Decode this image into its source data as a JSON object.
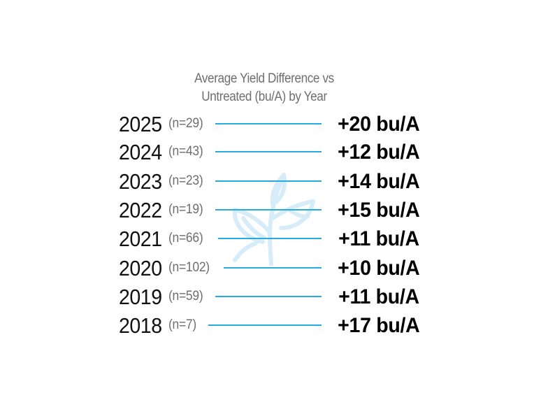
{
  "chart_data": {
    "type": "table",
    "title": "Average Yield Difference vs Untreated (bu/A) by Year",
    "title_lines": [
      "Average Yield Difference vs",
      "Untreated (bu/A) by Year"
    ],
    "rows": [
      {
        "year": "2025",
        "n": "(n=29)",
        "value": 20,
        "value_label": "+20 bu/A"
      },
      {
        "year": "2024",
        "n": "(n=43)",
        "value": 12,
        "value_label": "+12 bu/A"
      },
      {
        "year": "2023",
        "n": "(n=23)",
        "value": 14,
        "value_label": "+14 bu/A"
      },
      {
        "year": "2022",
        "n": "(n=19)",
        "value": 15,
        "value_label": "+15 bu/A"
      },
      {
        "year": "2021",
        "n": "(n=66)",
        "value": 11,
        "value_label": "+11 bu/A"
      },
      {
        "year": "2020",
        "n": "(n=102)",
        "value": 10,
        "value_label": "+10 bu/A"
      },
      {
        "year": "2019",
        "n": "(n=59)",
        "value": 11,
        "value_label": "+11 bu/A"
      },
      {
        "year": "2018",
        "n": "(n=7)",
        "value": 17,
        "value_label": "+17 bu/A"
      }
    ],
    "colors": {
      "leader_line": "#29abe2",
      "watermark": "#d6ecf8",
      "title": "#6d6e71",
      "n_label": "#6d6e71",
      "year": "#111111",
      "value": "#000000"
    },
    "watermark_icon": "plant-sprout-icon"
  }
}
